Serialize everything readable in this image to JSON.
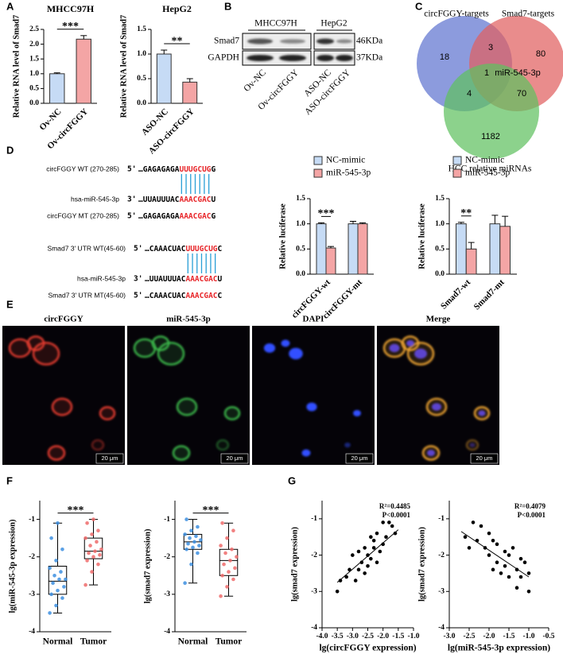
{
  "panel_labels": [
    "A",
    "B",
    "C",
    "D",
    "E",
    "F",
    "G"
  ],
  "western_blot": {
    "cell_lines": [
      "MHCC97H",
      "HepG2"
    ],
    "proteins": [
      "Smad7",
      "GAPDH"
    ],
    "sizes": [
      "46KDa",
      "37KDa"
    ],
    "lanes": [
      "Ov-NC",
      "Ov-circFGGY",
      "ASO-NC",
      "ASO-circFGGY"
    ]
  },
  "venn": {
    "sets": [
      "circFGGY-targets",
      "Smad7-targets",
      "HCC relative miRNAs"
    ],
    "regions": {
      "circfggy_only": 18,
      "circfggy_smad7": 3,
      "smad7_only": 80,
      "all": 1,
      "all_mirna": "miR-545-3p",
      "circfggy_hcc": 4,
      "smad7_hcc": 70,
      "hcc_only": 1182
    }
  },
  "sequences": {
    "rows": [
      {
        "label": "circFGGY WT (270-285)",
        "end": "5'",
        "parts": [
          "…GAGAGAGA",
          "UUUGCUG",
          "G"
        ]
      },
      {
        "label": "hsa-miR-545-3p",
        "end": "3'",
        "parts": [
          "…UUAUUUAC",
          "AAACGAC",
          "U"
        ]
      },
      {
        "label": "circFGGY MT (270-285)",
        "end": "5'",
        "parts": [
          "…GAGAGAGA",
          "AAACGAC",
          "G"
        ]
      },
      {
        "label": "Smad7 3' UTR WT(45-60)",
        "end": "5'",
        "parts": [
          "…CAAACUAC",
          "UUUGCUG",
          "C"
        ]
      },
      {
        "label": "hsa-miR-545-3p",
        "end": "3'",
        "parts": [
          "…UUAUUUAC",
          "AAACGAC",
          "U"
        ]
      },
      {
        "label": "Smad7 3' UTR MT(45-60)",
        "end": "5'",
        "parts": [
          "…CAAACUAC",
          "AAACGAC",
          "C"
        ]
      }
    ]
  },
  "microscopy": {
    "channels": [
      "circFGGY",
      "miR-545-3p",
      "DAPI",
      "Merge"
    ],
    "scale_bar": "20 μm"
  },
  "chart_data": [
    {
      "type": "bar",
      "title": "MHCC97H",
      "ylabel": "Relative RNA level of Smad7",
      "categories": [
        "Ov-NC",
        "Ov-circFGGY"
      ],
      "values": [
        1.0,
        2.17
      ],
      "errors": [
        0.03,
        0.12
      ],
      "colors": [
        "#c6dbf5",
        "#f4a5a5"
      ],
      "significance": "***",
      "ylim": [
        0,
        2.5
      ],
      "yticks": [
        {
          "value": 0,
          "label": "0.0"
        },
        0.5,
        {
          "value": 1,
          "label": "1.0"
        },
        1.5,
        {
          "value": 2,
          "label": "2.0"
        },
        2.5
      ]
    },
    {
      "type": "bar",
      "title": "HepG2",
      "ylabel": "Relative RNA level of Smad7",
      "categories": [
        "ASO-NC",
        "ASO-circFGGY"
      ],
      "values": [
        1.0,
        0.43
      ],
      "errors": [
        0.08,
        0.07
      ],
      "colors": [
        "#c6dbf5",
        "#f4a5a5"
      ],
      "significance": "**",
      "ylim": [
        0,
        1.5
      ],
      "yticks": [
        {
          "value": 0,
          "label": "0.0"
        },
        0.5,
        {
          "value": 1,
          "label": "1.0"
        },
        1.5
      ]
    },
    {
      "type": "grouped_bar",
      "ylabel": "Relative luciferase",
      "categories": [
        "circFGGY-wt",
        "circFGGY-mt"
      ],
      "series": [
        {
          "name": "NC-mimic",
          "color": "#c6dbf5",
          "values": [
            1.0,
            1.0
          ],
          "errors": [
            0.02,
            0.05
          ]
        },
        {
          "name": "miR-545-3p",
          "color": "#f4a5a5",
          "values": [
            0.52,
            1.0
          ],
          "errors": [
            0.03,
            0.02
          ]
        }
      ],
      "significance": "***",
      "ylim": [
        0,
        1.5
      ],
      "yticks": [
        {
          "value": 0,
          "label": "0.0"
        },
        0.5,
        {
          "value": 1,
          "label": "1.0"
        },
        1.5
      ]
    },
    {
      "type": "grouped_bar",
      "ylabel": "Relative luciferase",
      "categories": [
        "Smad7-wt",
        "Smad7-mt"
      ],
      "series": [
        {
          "name": "NC-mimic",
          "color": "#c6dbf5",
          "values": [
            1.0,
            1.0
          ],
          "errors": [
            0.03,
            0.17
          ]
        },
        {
          "name": "miR-545-3p",
          "color": "#f4a5a5",
          "values": [
            0.5,
            0.95
          ],
          "errors": [
            0.13,
            0.2
          ]
        }
      ],
      "significance": "**",
      "ylim": [
        0,
        1.5
      ],
      "yticks": [
        {
          "value": 0,
          "label": "0.0"
        },
        0.5,
        {
          "value": 1,
          "label": "1.0"
        },
        1.5
      ]
    },
    {
      "type": "box",
      "ylabel": "lg(miR-545-3p expression)",
      "categories": [
        "Normal",
        "Tumor"
      ],
      "colors": [
        "#3d8fe0",
        "#ee6b6b"
      ],
      "boxes": [
        {
          "min": -3.5,
          "q1": -3.0,
          "median": -2.65,
          "q3": -2.25,
          "max": -1.1,
          "points": [
            -3.5,
            -3.3,
            -3.1,
            -3.0,
            -2.9,
            -2.8,
            -2.7,
            -2.6,
            -2.6,
            -2.5,
            -2.4,
            -2.3,
            -2.1,
            -1.8,
            -1.5,
            -1.1
          ]
        },
        {
          "min": -2.75,
          "q1": -2.05,
          "median": -1.85,
          "q3": -1.5,
          "max": -1.0,
          "points": [
            -2.75,
            -2.4,
            -2.2,
            -2.1,
            -2.0,
            -1.95,
            -1.9,
            -1.85,
            -1.8,
            -1.7,
            -1.6,
            -1.5,
            -1.4,
            -1.3,
            -1.1,
            -1.0
          ]
        }
      ],
      "significance": "***",
      "ylim": [
        -4,
        -0.5
      ],
      "yticks": [
        -4,
        -3,
        -2,
        -1
      ]
    },
    {
      "type": "box",
      "ylabel": "lg(smad7 expression)",
      "categories": [
        "Normal",
        "Tumor"
      ],
      "colors": [
        "#3d8fe0",
        "#ee6b6b"
      ],
      "boxes": [
        {
          "min": -2.7,
          "q1": -1.8,
          "median": -1.6,
          "q3": -1.4,
          "max": -1.0,
          "points": [
            -2.7,
            -2.2,
            -1.9,
            -1.8,
            -1.75,
            -1.7,
            -1.65,
            -1.6,
            -1.55,
            -1.5,
            -1.45,
            -1.4,
            -1.3,
            -1.2,
            -1.0
          ]
        },
        {
          "min": -3.05,
          "q1": -2.5,
          "median": -2.1,
          "q3": -1.8,
          "max": -1.1,
          "points": [
            -3.05,
            -2.8,
            -2.6,
            -2.5,
            -2.4,
            -2.3,
            -2.2,
            -2.1,
            -2.0,
            -1.9,
            -1.8,
            -1.7,
            -1.5,
            -1.3,
            -1.1
          ]
        }
      ],
      "significance": "***",
      "ylim": [
        -4,
        -0.5
      ],
      "yticks": [
        -4,
        -3,
        -2,
        -1
      ]
    },
    {
      "type": "scatter",
      "xlabel": "lg(circFGGY expression)",
      "ylabel": "lg(smad7 expression)",
      "x": [
        -3.5,
        -3.4,
        -3.2,
        -3.1,
        -3.0,
        -2.9,
        -2.8,
        -2.8,
        -2.7,
        -2.6,
        -2.6,
        -2.5,
        -2.5,
        -2.4,
        -2.4,
        -2.3,
        -2.3,
        -2.2,
        -2.2,
        -2.1,
        -2.0,
        -2.0,
        -1.9,
        -1.8,
        -1.7,
        -1.6
      ],
      "y": [
        -3.0,
        -2.7,
        -2.6,
        -2.4,
        -2.0,
        -2.7,
        -2.4,
        -1.9,
        -2.2,
        -2.5,
        -1.8,
        -2.3,
        -2.0,
        -1.5,
        -2.1,
        -1.8,
        -1.6,
        -2.2,
        -1.4,
        -1.9,
        -1.1,
        -1.7,
        -1.5,
        -1.1,
        -1.2,
        -1.4
      ],
      "fit": {
        "x": [
          -3.5,
          -1.5
        ],
        "y": [
          -2.75,
          -1.3
        ]
      },
      "annotations": [
        "R²=0.4485",
        "P<0.0001"
      ],
      "xlim": [
        -4,
        -1
      ],
      "xticks": [
        {
          "value": -4,
          "label": "-4.0"
        },
        -3.5,
        {
          "value": -3,
          "label": "-3.0"
        },
        -2.5,
        {
          "value": -2,
          "label": "-2.0"
        },
        -1.5,
        {
          "value": -1,
          "label": "-1.0"
        }
      ],
      "ylim": [
        -4,
        -0.5
      ],
      "yticks": [
        -4,
        -3,
        -2,
        -1
      ]
    },
    {
      "type": "scatter",
      "xlabel": "lg(miR-545-3p expression)",
      "ylabel": "lg(smad7 expression)",
      "x": [
        -2.6,
        -2.4,
        -2.3,
        -2.2,
        -2.1,
        -2.0,
        -2.0,
        -1.9,
        -1.8,
        -1.8,
        -1.7,
        -1.6,
        -1.6,
        -1.5,
        -1.5,
        -1.4,
        -1.3,
        -1.3,
        -1.2,
        -1.2,
        -1.1,
        -1.0,
        -1.0,
        -2.5,
        -1.9
      ],
      "y": [
        -1.5,
        -1.1,
        -1.6,
        -1.2,
        -1.8,
        -1.4,
        -2.0,
        -1.6,
        -2.2,
        -1.7,
        -2.5,
        -1.9,
        -2.3,
        -2.0,
        -2.6,
        -1.8,
        -2.4,
        -2.9,
        -2.1,
        -2.6,
        -2.2,
        -2.5,
        -3.0,
        -1.8,
        -2.4
      ],
      "fit": {
        "x": [
          -2.7,
          -1.0
        ],
        "y": [
          -1.35,
          -2.6
        ]
      },
      "annotations": [
        "R²=0.4079",
        "P<0.0001"
      ],
      "xlim": [
        -3,
        -0.5
      ],
      "xticks": [
        {
          "value": -3,
          "label": "-3.0"
        },
        -2.5,
        {
          "value": -2,
          "label": "-2.0"
        },
        -1.5,
        {
          "value": -1,
          "label": "-1.0"
        },
        -0.5
      ],
      "ylim": [
        -4,
        -0.5
      ],
      "yticks": [
        -4,
        -3,
        -2,
        -1
      ]
    }
  ]
}
